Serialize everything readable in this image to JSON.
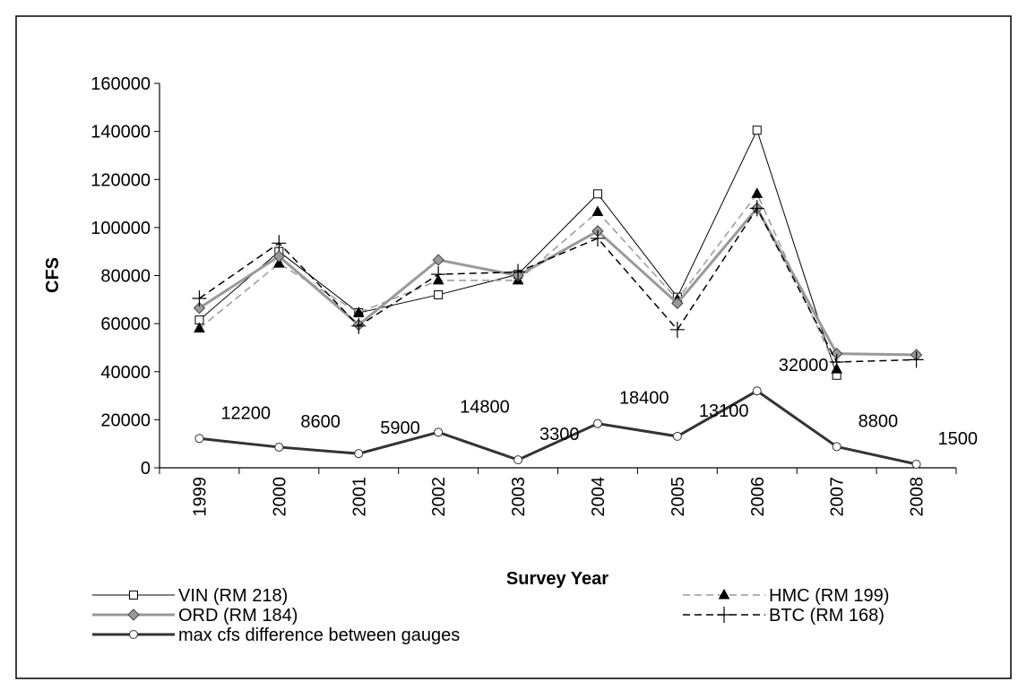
{
  "chart_data": {
    "type": "line",
    "x_label": "Survey Year",
    "y_label": "CFS",
    "categories": [
      "1999",
      "2000",
      "2001",
      "2002",
      "2003",
      "2004",
      "2005",
      "2006",
      "2007",
      "2008"
    ],
    "ylim": [
      0,
      160000
    ],
    "yticks": [
      0,
      20000,
      40000,
      60000,
      80000,
      100000,
      120000,
      140000,
      160000
    ],
    "series": [
      {
        "name": "VIN (RM 218)",
        "color": "#000000",
        "width": 1,
        "dash": "none",
        "marker": "square",
        "marker_fill": "#ffffff",
        "values": [
          61500,
          90000,
          64500,
          72000,
          80500,
          114000,
          71000,
          140500,
          38500,
          null
        ]
      },
      {
        "name": "HMC (RM 199)",
        "color": "#999999",
        "width": 1.5,
        "dash": "8 5",
        "marker": "triangle",
        "marker_fill": "#000000",
        "values": [
          58000,
          85000,
          64500,
          78000,
          78000,
          106500,
          70000,
          114000,
          41000,
          null
        ]
      },
      {
        "name": "ORD (RM 184)",
        "color": "#999999",
        "width": 3,
        "dash": "none",
        "marker": "diamond",
        "marker_fill": "#999999",
        "values": [
          66500,
          88000,
          59500,
          86500,
          80000,
          98500,
          68500,
          108000,
          47500,
          47000
        ]
      },
      {
        "name": "BTC (RM 168)",
        "color": "#000000",
        "width": 1.5,
        "dash": "8 5",
        "marker": "plus",
        "marker_fill": "#000000",
        "values": [
          70500,
          93500,
          59000,
          80500,
          81500,
          95500,
          57500,
          108000,
          44000,
          45000
        ]
      },
      {
        "name": "max cfs difference between gauges",
        "color": "#333333",
        "width": 3,
        "dash": "none",
        "marker": "circle",
        "marker_fill": "#ffffff",
        "values": [
          12200,
          8600,
          5900,
          14800,
          3300,
          18400,
          13100,
          32000,
          8800,
          1500
        ],
        "data_labels": true
      }
    ]
  }
}
